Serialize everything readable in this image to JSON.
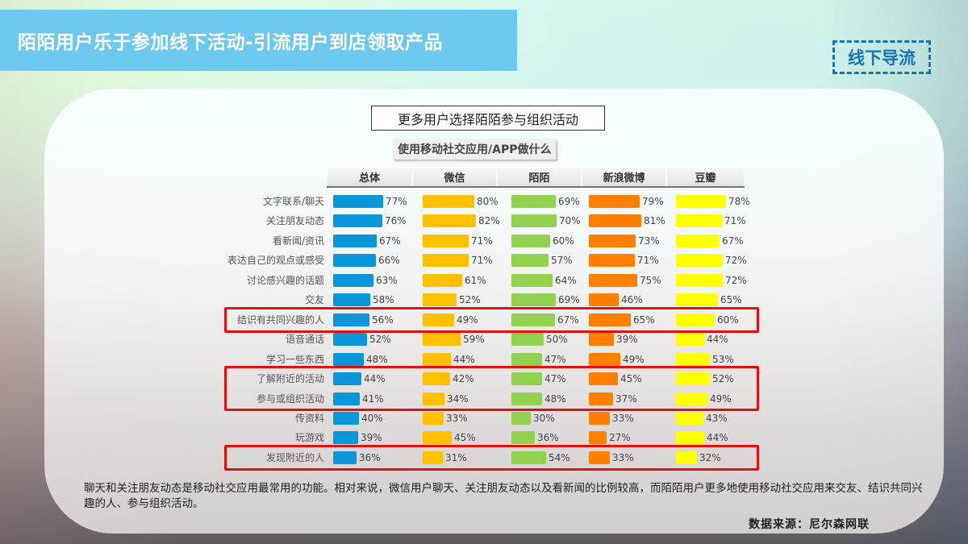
{
  "header": {
    "title": "陌陌用户乐于参加线下活动-引流用户到店领取产品",
    "tag": "线下导流"
  },
  "chart_data": {
    "type": "bar",
    "orientation": "horizontal",
    "title": "更多用户选择陌陌参与组织活动",
    "subtitle": "使用移动社交应用/APP做什么",
    "categories": [
      "文字联系/聊天",
      "关注朋友动态",
      "看新闻/资讯",
      "表达自己的观点或感受",
      "讨论感兴趣的话题",
      "交友",
      "结识有共同兴趣的人",
      "语音通话",
      "学习一些东西",
      "了解附近的活动",
      "参与或组织活动",
      "传资料",
      "玩游戏",
      "发现附近的人"
    ],
    "series": [
      {
        "name": "总体",
        "color": "#0a96d8",
        "values": [
          77,
          76,
          67,
          66,
          63,
          58,
          56,
          52,
          48,
          44,
          41,
          40,
          39,
          36
        ]
      },
      {
        "name": "微信",
        "color": "#ffc000",
        "values": [
          80,
          82,
          71,
          71,
          61,
          52,
          49,
          59,
          44,
          42,
          34,
          33,
          45,
          31
        ]
      },
      {
        "name": "陌陌",
        "color": "#92d050",
        "values": [
          69,
          70,
          60,
          57,
          64,
          69,
          67,
          50,
          47,
          47,
          48,
          30,
          36,
          54
        ]
      },
      {
        "name": "新浪微博",
        "color": "#ff8000",
        "values": [
          79,
          81,
          73,
          71,
          75,
          46,
          65,
          39,
          49,
          45,
          37,
          33,
          27,
          33
        ]
      },
      {
        "name": "豆瓣",
        "color": "#ffff00",
        "values": [
          78,
          71,
          67,
          72,
          72,
          65,
          60,
          44,
          53,
          52,
          49,
          43,
          44,
          32
        ]
      }
    ],
    "value_format": "percent",
    "highlighted_rows": [
      "结识有共同兴趣的人",
      "了解附近的活动",
      "参与或组织活动",
      "发现附近的人"
    ],
    "highlight_color": "#e01010",
    "xlim": [
      0,
      100
    ],
    "grid": false,
    "legend_position": "column headers (top)"
  },
  "summary": "聊天和关注朋友动态是移动社交应用最常用的功能。相对来说，微信用户聊天、关注朋友动态以及看新闻的比例较高，而陌陌用户更多地使用移动社交应用来交友、结识共同兴趣的人、参与组织活动。",
  "source": "数据来源：尼尔森网联"
}
